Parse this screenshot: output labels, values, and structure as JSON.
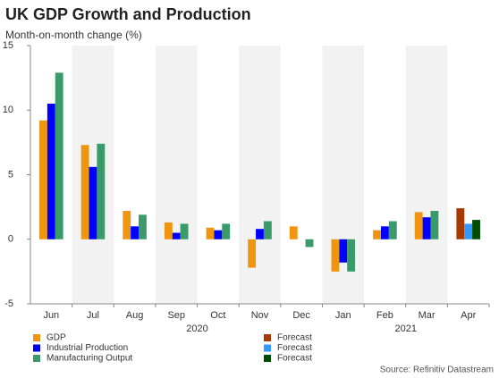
{
  "chart_data": {
    "type": "bar",
    "title": "UK GDP Growth and Production",
    "subtitle": "Month-on-month change (%)",
    "categories": [
      "Jun",
      "Jul",
      "Aug",
      "Sep",
      "Oct",
      "Nov",
      "Dec",
      "Jan",
      "Feb",
      "Mar",
      "Apr"
    ],
    "year_labels": [
      "2020",
      "2021"
    ],
    "series": [
      {
        "name": "GDP",
        "color": "#f0950f",
        "values": [
          9.2,
          7.3,
          2.2,
          1.3,
          0.9,
          -2.2,
          1.0,
          -2.5,
          0.7,
          2.1,
          null
        ]
      },
      {
        "name": "Industrial Production",
        "color": "#0000ff",
        "values": [
          10.5,
          5.6,
          1.0,
          0.5,
          0.7,
          0.8,
          null,
          -1.8,
          1.0,
          1.7,
          null
        ]
      },
      {
        "name": "Manufacturing Output",
        "color": "#3a9a6a",
        "values": [
          12.9,
          7.4,
          1.9,
          1.2,
          1.2,
          1.4,
          -0.6,
          -2.5,
          1.4,
          2.2,
          null
        ]
      },
      {
        "name": "Forecast",
        "color": "#a83a00",
        "values": [
          null,
          null,
          null,
          null,
          null,
          null,
          null,
          null,
          null,
          null,
          2.4
        ]
      },
      {
        "name": "Forecast",
        "color": "#3399ff",
        "values": [
          null,
          null,
          null,
          null,
          null,
          null,
          null,
          null,
          null,
          null,
          1.2
        ]
      },
      {
        "name": "Forecast",
        "color": "#004d00",
        "values": [
          null,
          null,
          null,
          null,
          null,
          null,
          null,
          null,
          null,
          null,
          1.5
        ]
      }
    ],
    "ylim": [
      -5,
      15
    ],
    "yticks": [
      -5,
      0,
      5,
      10,
      15
    ],
    "source": "Source: Refinitiv Datastream"
  }
}
